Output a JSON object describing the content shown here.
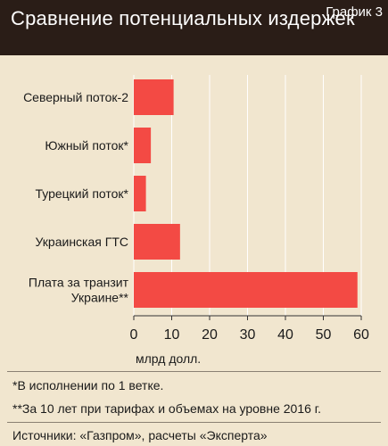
{
  "header": {
    "title": "Сравнение потенциальных издержек",
    "badge": "График 3"
  },
  "colors": {
    "background": "#f1e6cf",
    "header": "#2a1d17",
    "bar": "#f34a44",
    "grid": "#ffffff"
  },
  "chart_data": {
    "type": "bar",
    "orientation": "horizontal",
    "categories": [
      [
        "Северный поток-2"
      ],
      [
        "Южный поток*"
      ],
      [
        "Турецкий поток*"
      ],
      [
        "Украинская ГТС"
      ],
      [
        "Плата за транзит",
        "Украине**"
      ]
    ],
    "values": [
      10.5,
      4.5,
      3.2,
      12.2,
      59
    ],
    "xlim": [
      0,
      60
    ],
    "xticks": [
      "0",
      "10",
      "20",
      "30",
      "40",
      "50",
      "60"
    ],
    "xlabel": "млрд долл.",
    "grid": true
  },
  "footnotes": {
    "note1": "*В исполнении по 1 ветке.",
    "note2": "**За 10 лет при тарифах и объемах на уровне 2016 г.",
    "source": "Источники: «Газпром», расчеты «Эксперта»"
  }
}
